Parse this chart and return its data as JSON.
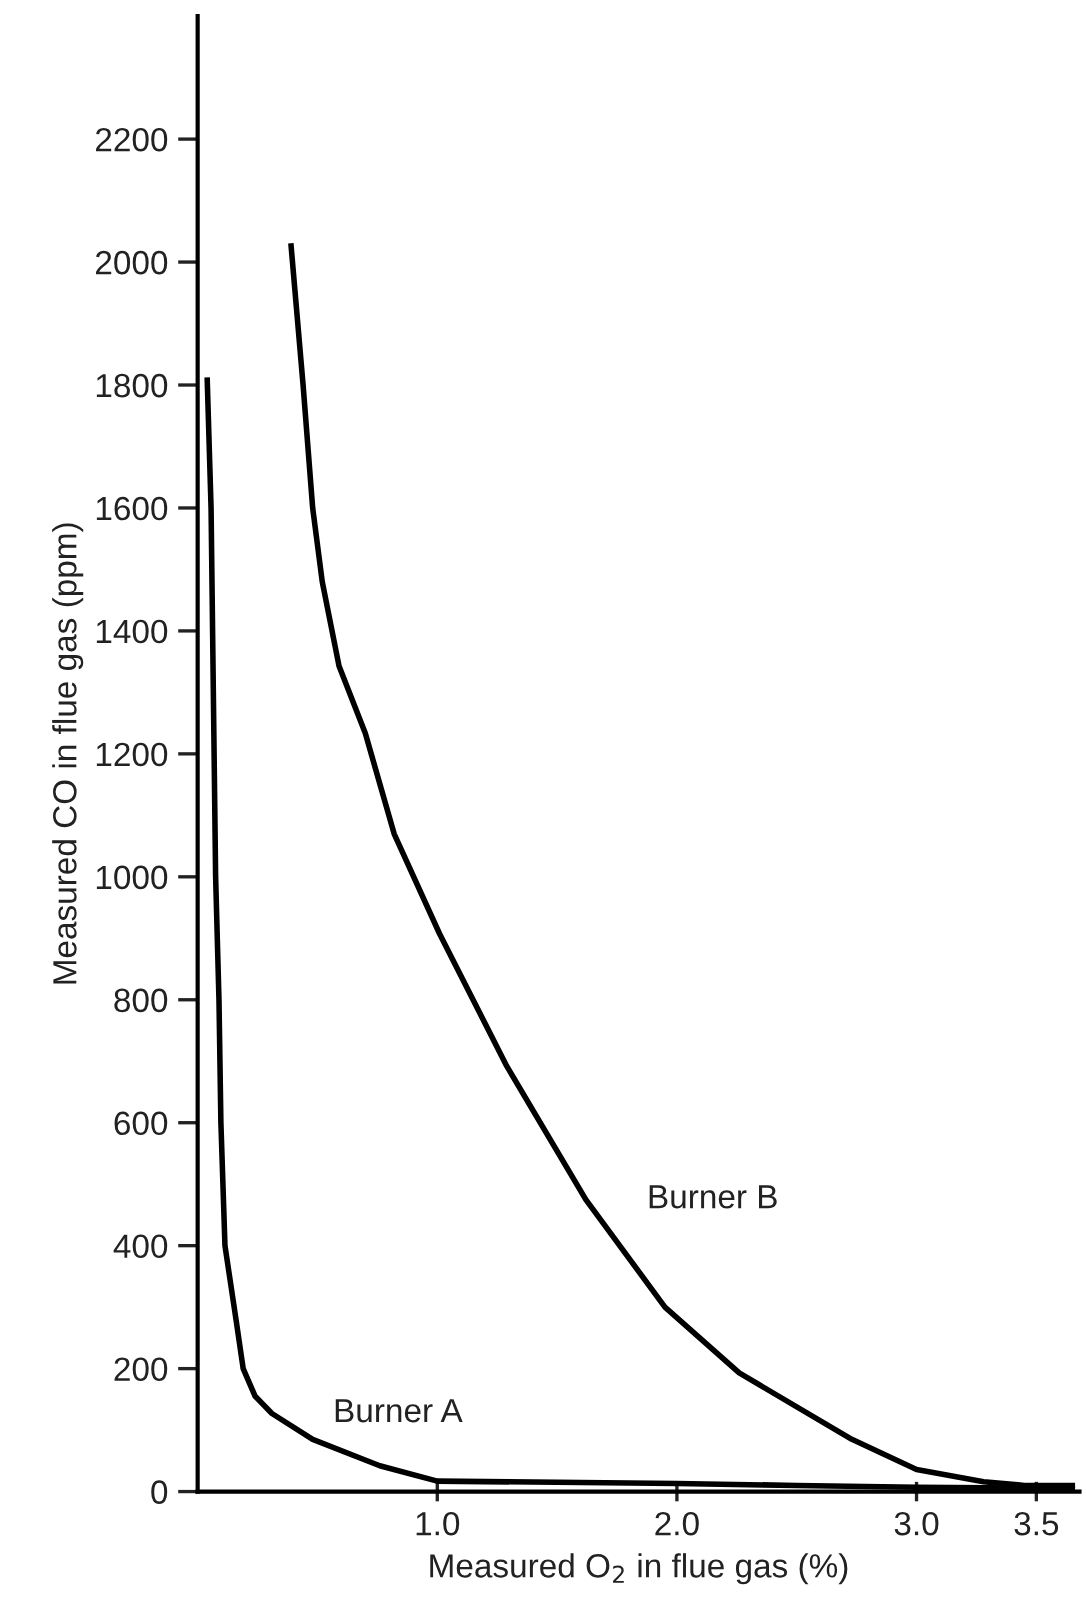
{
  "chart_data": {
    "type": "line",
    "xlabel": "Measured O$_{2}$ in flue gas (%)",
    "ylabel": "Measured CO in flue gas (ppm)",
    "xlim": [
      0,
      3.68
    ],
    "ylim": [
      0,
      2400
    ],
    "xticks": [
      {
        "value": 1.0,
        "label": "1.0"
      },
      {
        "value": 2.0,
        "label": "2.0"
      },
      {
        "value": 3.0,
        "label": "3.0"
      },
      {
        "value": 3.5,
        "label": "3.5"
      }
    ],
    "yticks": [
      0,
      200,
      400,
      600,
      800,
      1000,
      1200,
      1400,
      1600,
      1800,
      2000,
      2200
    ],
    "grid": false,
    "legend": false,
    "marker": "none",
    "line_style": "solid",
    "series": [
      {
        "name": "Burner A",
        "color": "#000000",
        "x": [
          0.04,
          0.056,
          0.075,
          0.089,
          0.097,
          0.114,
          0.16,
          0.19,
          0.24,
          0.31,
          0.48,
          0.76,
          1.0,
          1.5,
          2.0,
          2.5,
          3.0,
          3.3,
          3.65
        ],
        "values": [
          1808,
          1600,
          1000,
          800,
          600,
          400,
          280,
          200,
          155,
          127,
          85,
          42,
          17,
          15,
          13,
          10,
          7,
          6,
          5
        ]
      },
      {
        "name": "Burner B",
        "color": "#000000",
        "x": [
          0.39,
          0.44,
          0.48,
          0.52,
          0.59,
          0.7,
          0.82,
          1.01,
          1.29,
          1.62,
          1.95,
          2.26,
          2.73,
          3.0,
          3.28,
          3.45,
          3.65
        ],
        "values": [
          2026,
          1800,
          1600,
          1480,
          1343,
          1233,
          1070,
          907,
          692,
          475,
          300,
          193,
          85,
          36,
          16,
          10,
          10
        ]
      }
    ]
  }
}
